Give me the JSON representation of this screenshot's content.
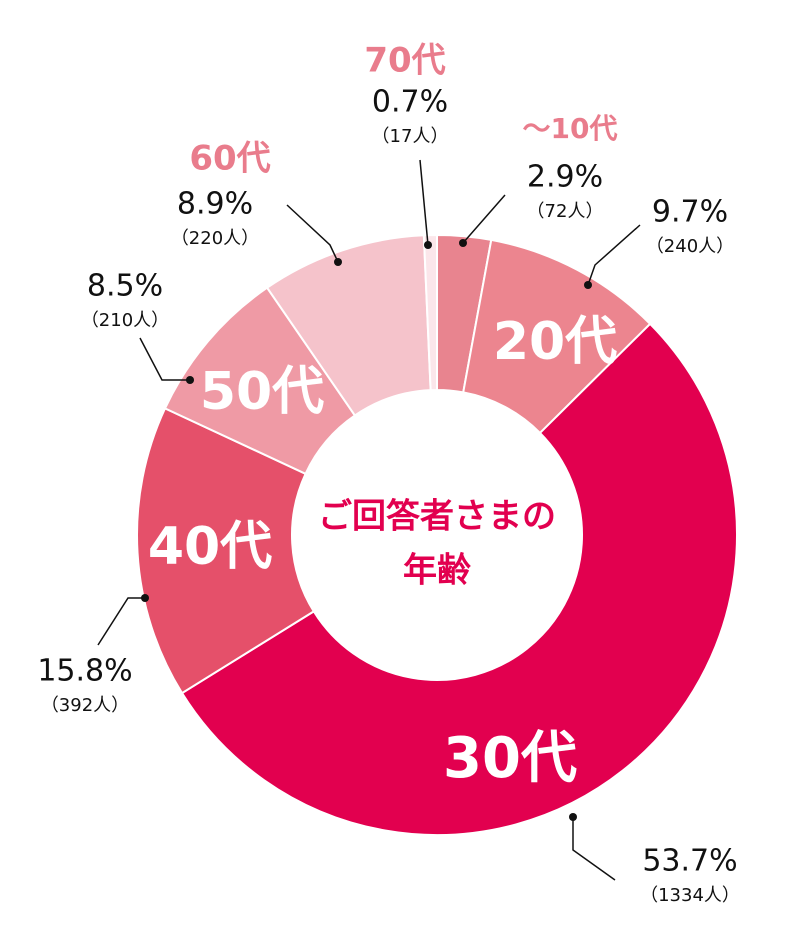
{
  "chart_data": {
    "type": "donut",
    "center_label": [
      "ご回答者さまの",
      "年齢"
    ],
    "categories": [
      "～10代",
      "20代",
      "30代",
      "40代",
      "50代",
      "60代",
      "70代"
    ],
    "values": [
      2.9,
      9.7,
      53.7,
      15.8,
      8.5,
      8.9,
      0.7
    ],
    "value_labels": [
      "2.9%",
      "9.7%",
      "53.7%",
      "15.8%",
      "8.5%",
      "8.9%",
      "0.7%"
    ],
    "count_labels": [
      "（72人）",
      "（240人）",
      "（1334人）",
      "（392人）",
      "（210人）",
      "（220人）",
      "（17人）"
    ],
    "colors": [
      "#e8848f",
      "#ec858f",
      "#e2004f",
      "#e5506a",
      "#ef9aa5",
      "#f5c3cb",
      "#fbe6ea"
    ]
  }
}
